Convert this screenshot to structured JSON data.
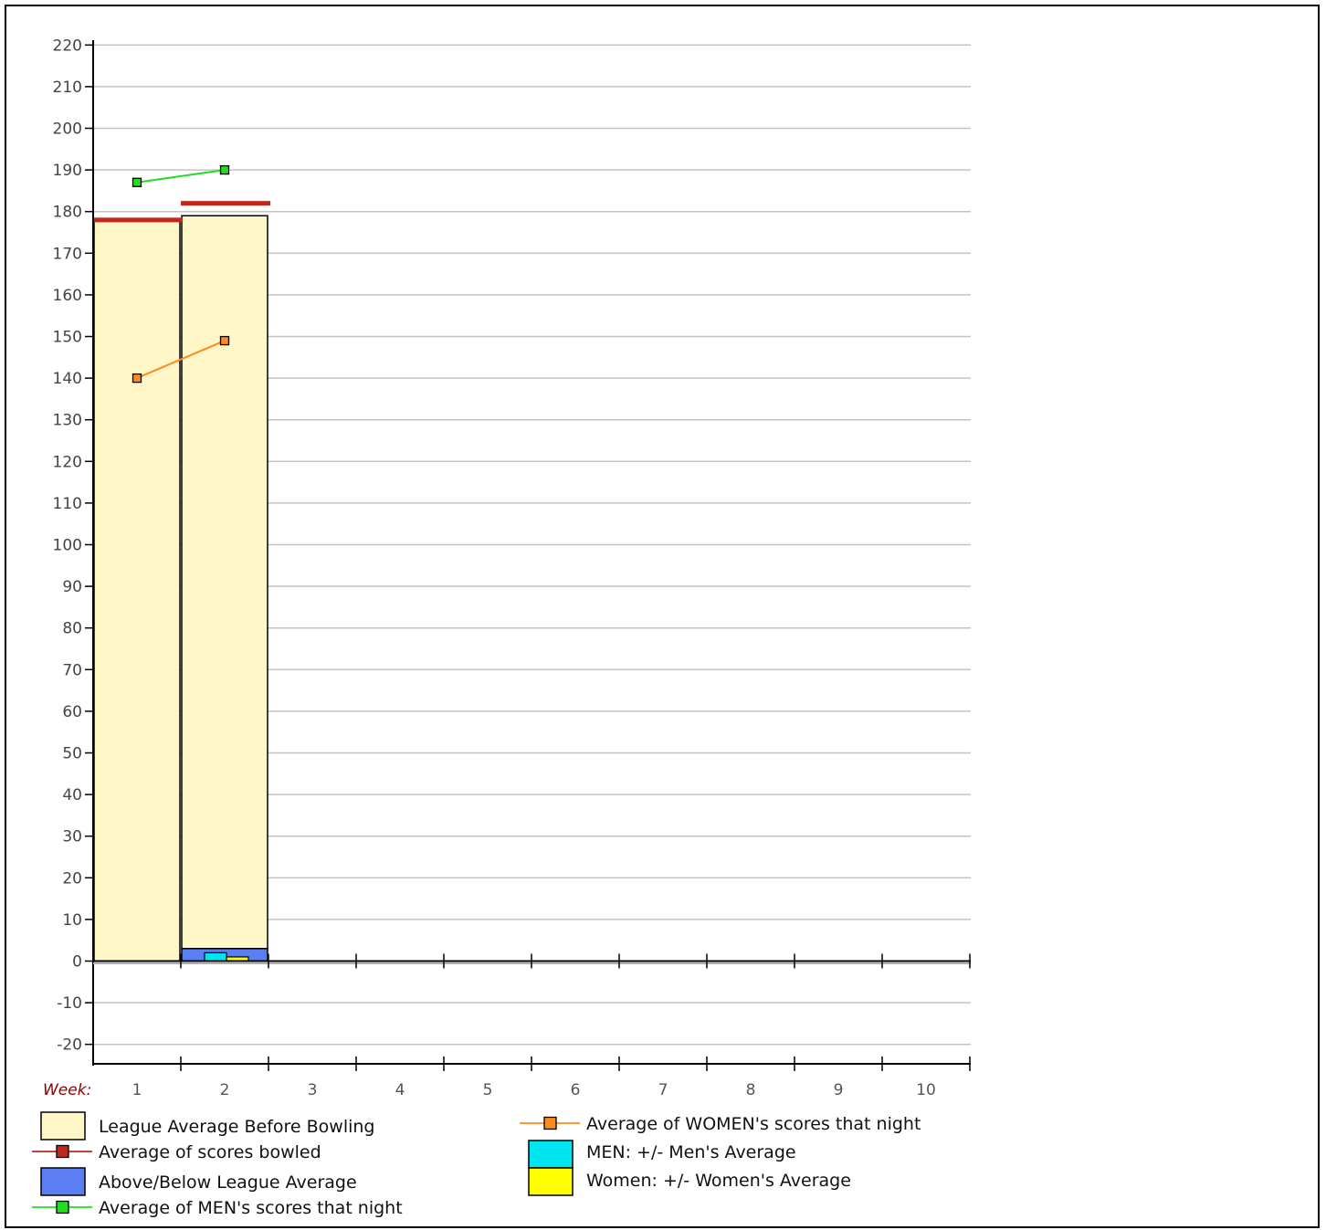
{
  "chart_data": {
    "type": "bar",
    "x_label": "Week:",
    "weeks": [
      "1",
      "2",
      "3",
      "4",
      "5",
      "6",
      "7",
      "8",
      "9",
      "10"
    ],
    "yticks": [
      220,
      210,
      200,
      190,
      180,
      170,
      160,
      150,
      140,
      130,
      120,
      110,
      100,
      90,
      80,
      70,
      60,
      50,
      40,
      30,
      20,
      10,
      0,
      -10,
      -20
    ],
    "ylim": [
      -25,
      222
    ],
    "grid": true,
    "series": {
      "league_average_before": {
        "name": "League Average Before Bowling",
        "values": [
          178,
          179
        ],
        "color": "#fff7c8"
      },
      "above_below": {
        "name": "Above/Below League Average",
        "values": [
          0,
          3
        ],
        "color": "#5b7ff2"
      },
      "avg_scores_bowled": {
        "name": "Average of scores bowled",
        "values": [
          178,
          182
        ],
        "color": "#c0281e"
      },
      "men_avg": {
        "name": "Average of MEN's scores that night",
        "values": [
          187,
          190
        ],
        "color": "#22dd22"
      },
      "women_avg": {
        "name": "Average of WOMEN's scores that night",
        "values": [
          140,
          149
        ],
        "color": "#ff8a1c"
      },
      "men_plus_minus": {
        "name": "MEN: +/- Men's Average",
        "values": [
          0,
          2
        ],
        "color": "#00e6f0"
      },
      "women_plus_minus": {
        "name": "Women: +/- Women's Average",
        "values": [
          0,
          1
        ],
        "color": "#ffff00"
      }
    },
    "legend": {
      "left": [
        "League Average Before Bowling",
        "Average of scores bowled",
        "Above/Below League Average",
        "Average of MEN's scores that night"
      ],
      "right": [
        "Average of WOMEN's scores that night",
        "MEN: +/- Men's Average",
        "Women: +/- Women's Average"
      ]
    }
  }
}
